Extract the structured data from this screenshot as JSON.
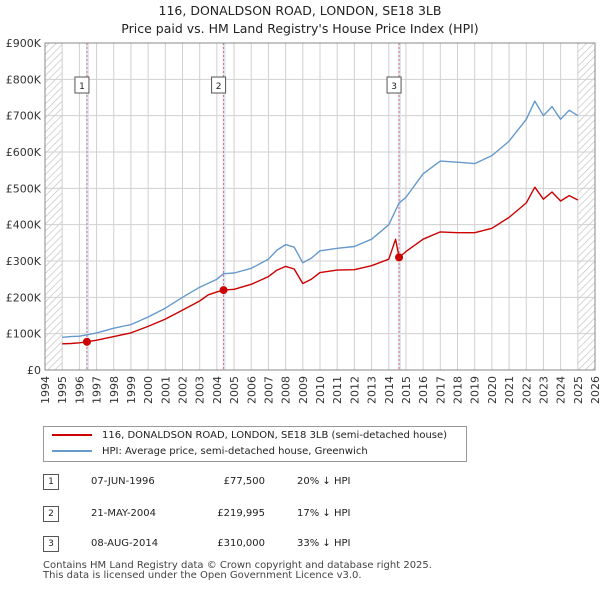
{
  "title_line1": "116, DONALDSON ROAD, LONDON, SE18 3LB",
  "title_line2": "Price paid vs. HM Land Registry's House Price Index (HPI)",
  "colors": {
    "property": "#cc0000",
    "hpi": "#6699cc",
    "marker_line": "#e07070",
    "shade": "#dde6f2",
    "grid": "#d0d0d0"
  },
  "legend": {
    "property_label": "116, DONALDSON ROAD, LONDON, SE18 3LB (semi-detached house)",
    "hpi_label": "HPI: Average price, semi-detached house, Greenwich"
  },
  "sales": [
    {
      "num": "1",
      "date": "07-JUN-1996",
      "price": "£77,500",
      "hpi_diff": "20% ↓ HPI"
    },
    {
      "num": "2",
      "date": "21-MAY-2004",
      "price": "£219,995",
      "hpi_diff": "17% ↓ HPI"
    },
    {
      "num": "3",
      "date": "08-AUG-2014",
      "price": "£310,000",
      "hpi_diff": "33% ↓ HPI"
    }
  ],
  "footer_line1": "Contains HM Land Registry data © Crown copyright and database right 2025.",
  "footer_line2": "This data is licensed under the Open Government Licence v3.0.",
  "chart_data": {
    "type": "line",
    "title": "116, DONALDSON ROAD, LONDON, SE18 3LB — Price paid vs. HM Land Registry's House Price Index (HPI)",
    "xlabel": "",
    "ylabel": "",
    "xlim": [
      1994,
      2026
    ],
    "ylim": [
      0,
      900000
    ],
    "xticks": [
      1994,
      1995,
      1996,
      1997,
      1998,
      1999,
      2000,
      2001,
      2002,
      2003,
      2004,
      2005,
      2006,
      2007,
      2008,
      2009,
      2010,
      2011,
      2012,
      2013,
      2014,
      2015,
      2016,
      2017,
      2018,
      2019,
      2020,
      2021,
      2022,
      2023,
      2024,
      2025,
      2026
    ],
    "yticks": [
      0,
      100000,
      200000,
      300000,
      400000,
      500000,
      600000,
      700000,
      800000,
      900000
    ],
    "ytick_labels": [
      "£0",
      "£100K",
      "£200K",
      "£300K",
      "£400K",
      "£500K",
      "£600K",
      "£700K",
      "£800K",
      "£900K"
    ],
    "hatched_ranges": [
      [
        1994,
        1995
      ],
      [
        2025,
        2026
      ]
    ],
    "markers": [
      {
        "label": "1",
        "x": 1996.44,
        "y": 77500
      },
      {
        "label": "2",
        "x": 2004.39,
        "y": 219995
      },
      {
        "label": "3",
        "x": 2014.6,
        "y": 310000
      }
    ],
    "series": [
      {
        "name": "116, DONALDSON ROAD, LONDON, SE18 3LB (semi-detached house)",
        "color": "#cc0000",
        "points": [
          [
            1995.0,
            72000
          ],
          [
            1995.5,
            73000
          ],
          [
            1996.0,
            75000
          ],
          [
            1996.44,
            77500
          ],
          [
            1997.0,
            82000
          ],
          [
            1998.0,
            92000
          ],
          [
            1999.0,
            102000
          ],
          [
            2000.0,
            120000
          ],
          [
            2001.0,
            140000
          ],
          [
            2002.0,
            165000
          ],
          [
            2003.0,
            190000
          ],
          [
            2003.5,
            207000
          ],
          [
            2004.0,
            215000
          ],
          [
            2004.39,
            219995
          ],
          [
            2005.0,
            222000
          ],
          [
            2006.0,
            236000
          ],
          [
            2007.0,
            257000
          ],
          [
            2007.5,
            275000
          ],
          [
            2008.0,
            285000
          ],
          [
            2008.5,
            278000
          ],
          [
            2009.0,
            238000
          ],
          [
            2009.5,
            250000
          ],
          [
            2010.0,
            268000
          ],
          [
            2011.0,
            275000
          ],
          [
            2012.0,
            276000
          ],
          [
            2013.0,
            287000
          ],
          [
            2014.0,
            305000
          ],
          [
            2014.4,
            360000
          ],
          [
            2014.6,
            310000
          ],
          [
            2015.0,
            326000
          ],
          [
            2016.0,
            360000
          ],
          [
            2017.0,
            380000
          ],
          [
            2018.0,
            378000
          ],
          [
            2019.0,
            378000
          ],
          [
            2020.0,
            390000
          ],
          [
            2021.0,
            420000
          ],
          [
            2022.0,
            460000
          ],
          [
            2022.5,
            503000
          ],
          [
            2023.0,
            470000
          ],
          [
            2023.5,
            490000
          ],
          [
            2024.0,
            465000
          ],
          [
            2024.5,
            480000
          ],
          [
            2025.0,
            468000
          ]
        ]
      },
      {
        "name": "HPI: Average price, semi-detached house, Greenwich",
        "color": "#6699cc",
        "points": [
          [
            1995.0,
            90000
          ],
          [
            1995.5,
            92000
          ],
          [
            1996.0,
            93000
          ],
          [
            1996.44,
            97000
          ],
          [
            1997.0,
            102000
          ],
          [
            1998.0,
            115000
          ],
          [
            1999.0,
            125000
          ],
          [
            2000.0,
            146000
          ],
          [
            2001.0,
            170000
          ],
          [
            2002.0,
            200000
          ],
          [
            2003.0,
            228000
          ],
          [
            2004.0,
            250000
          ],
          [
            2004.39,
            265000
          ],
          [
            2005.0,
            267000
          ],
          [
            2006.0,
            280000
          ],
          [
            2007.0,
            305000
          ],
          [
            2007.5,
            330000
          ],
          [
            2008.0,
            345000
          ],
          [
            2008.5,
            338000
          ],
          [
            2009.0,
            295000
          ],
          [
            2009.5,
            308000
          ],
          [
            2010.0,
            328000
          ],
          [
            2011.0,
            335000
          ],
          [
            2012.0,
            340000
          ],
          [
            2013.0,
            360000
          ],
          [
            2014.0,
            400000
          ],
          [
            2014.6,
            460000
          ],
          [
            2015.0,
            475000
          ],
          [
            2016.0,
            540000
          ],
          [
            2017.0,
            575000
          ],
          [
            2018.0,
            572000
          ],
          [
            2019.0,
            568000
          ],
          [
            2020.0,
            590000
          ],
          [
            2021.0,
            630000
          ],
          [
            2022.0,
            690000
          ],
          [
            2022.5,
            740000
          ],
          [
            2023.0,
            700000
          ],
          [
            2023.5,
            725000
          ],
          [
            2024.0,
            690000
          ],
          [
            2024.5,
            715000
          ],
          [
            2025.0,
            700000
          ]
        ]
      }
    ]
  }
}
